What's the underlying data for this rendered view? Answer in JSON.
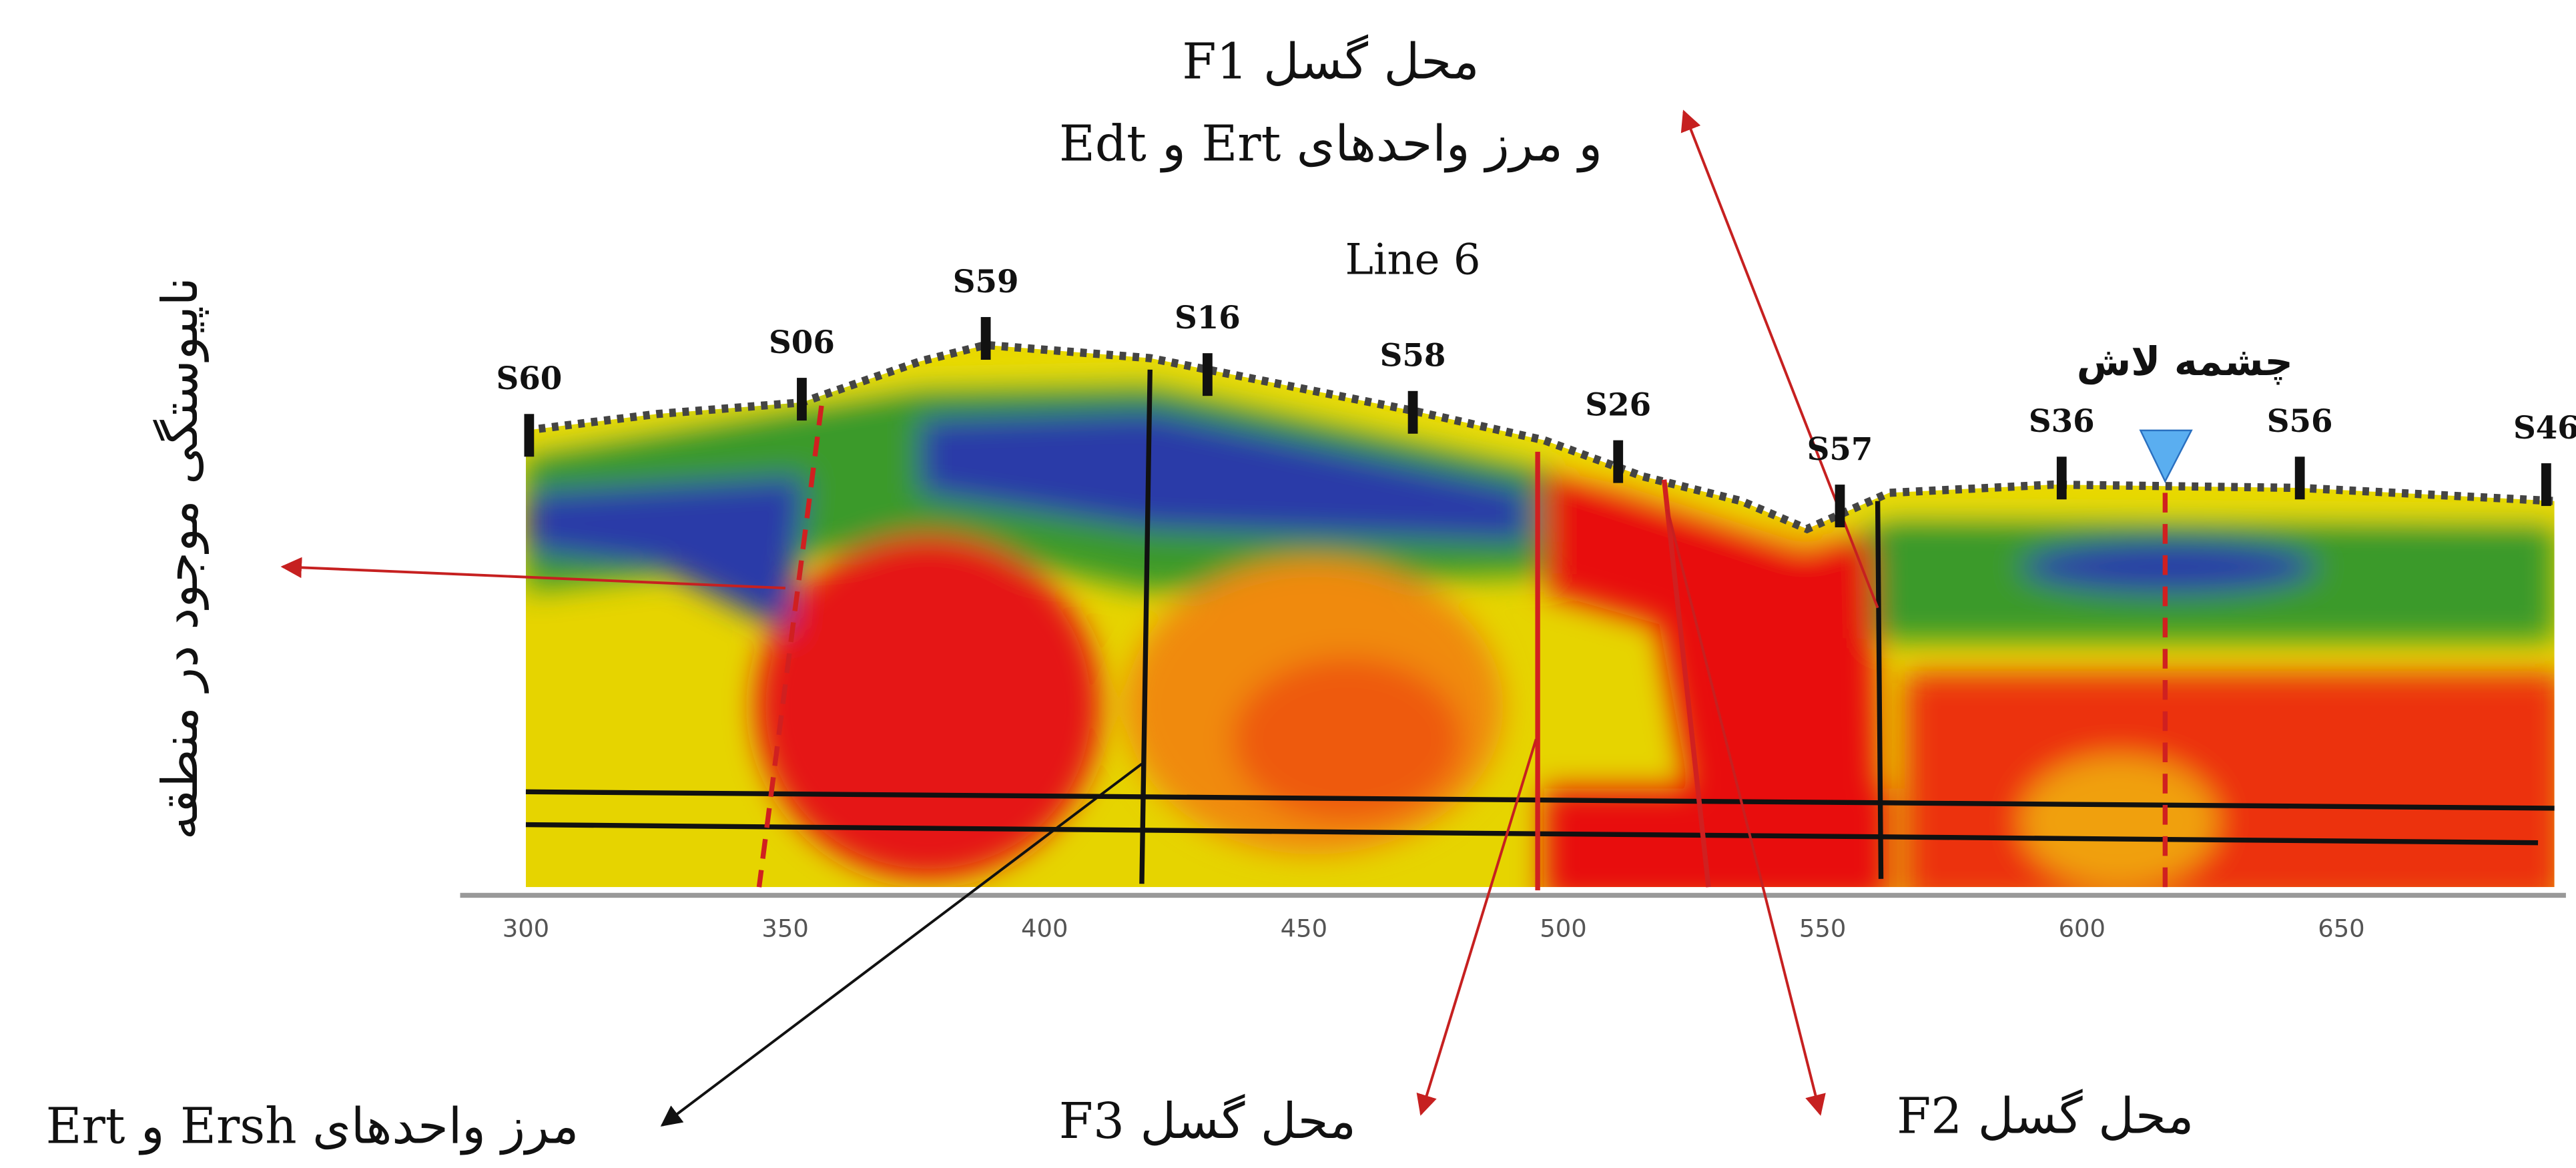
{
  "title": "Line 6",
  "stations": [
    "S60",
    "S06",
    "S59",
    "S16",
    "S58",
    "S26",
    "S57",
    "S36",
    "S56",
    "S46"
  ],
  "axis": {
    "ticks": [
      300,
      350,
      400,
      450,
      500,
      550,
      600,
      650
    ]
  },
  "annotations": {
    "f1_line1": "محل گسل F1",
    "f1_line2": "و مرز واحدهای Ert و Edt",
    "discontinuity": "ناپیوستگی موجود در منطقه",
    "spring": "چشمه لاش",
    "f3": "محل گسل F3",
    "f2": "محل گسل F2",
    "ersh_boundary": "مرز واحدهای Ersh و Ert"
  }
}
